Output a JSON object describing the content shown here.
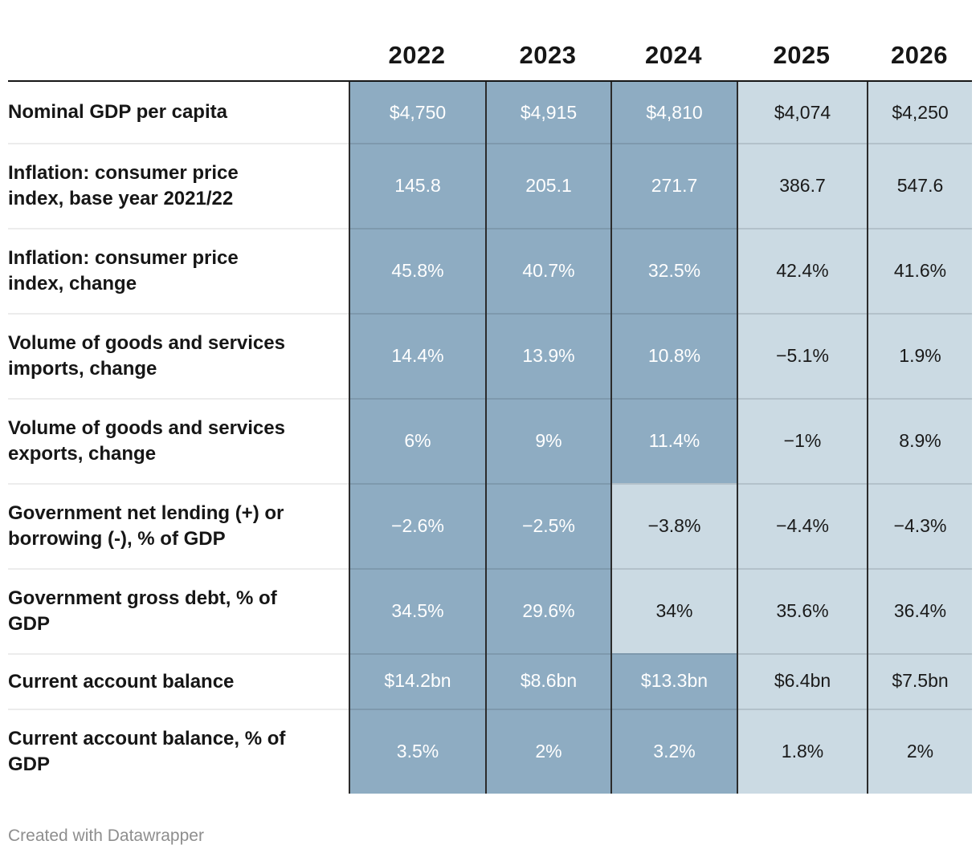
{
  "table": {
    "columns": [
      "2022",
      "2023",
      "2024",
      "2025",
      "2026"
    ],
    "rows": [
      {
        "label": "Nominal GDP per capita",
        "values": [
          "$4,750",
          "$4,915",
          "$4,810",
          "$4,074",
          "$4,250"
        ],
        "tones": [
          "dark",
          "dark",
          "dark",
          "light",
          "light"
        ]
      },
      {
        "label": "Inflation: consumer price\nindex, base year 2021/22",
        "values": [
          "145.8",
          "205.1",
          "271.7",
          "386.7",
          "547.6"
        ],
        "tones": [
          "dark",
          "dark",
          "dark",
          "light",
          "light"
        ]
      },
      {
        "label": "Inflation: consumer price\nindex, change",
        "values": [
          "45.8%",
          "40.7%",
          "32.5%",
          "42.4%",
          "41.6%"
        ],
        "tones": [
          "dark",
          "dark",
          "dark",
          "light",
          "light"
        ]
      },
      {
        "label": "Volume of goods and services\nimports, change",
        "values": [
          "14.4%",
          "13.9%",
          "10.8%",
          "−5.1%",
          "1.9%"
        ],
        "tones": [
          "dark",
          "dark",
          "dark",
          "light",
          "light"
        ]
      },
      {
        "label": "Volume of goods and services\nexports, change",
        "values": [
          "6%",
          "9%",
          "11.4%",
          "−1%",
          "8.9%"
        ],
        "tones": [
          "dark",
          "dark",
          "dark",
          "light",
          "light"
        ]
      },
      {
        "label": "Government net lending (+) or\nborrowing (-), % of GDP",
        "values": [
          "−2.6%",
          "−2.5%",
          "−3.8%",
          "−4.4%",
          "−4.3%"
        ],
        "tones": [
          "dark",
          "dark",
          "light",
          "light",
          "light"
        ]
      },
      {
        "label": "Government gross debt, % of\nGDP",
        "values": [
          "34.5%",
          "29.6%",
          "34%",
          "35.6%",
          "36.4%"
        ],
        "tones": [
          "dark",
          "dark",
          "light",
          "light",
          "light"
        ]
      },
      {
        "label": "Current account balance",
        "values": [
          "$14.2bn",
          "$8.6bn",
          "$13.3bn",
          "$6.4bn",
          "$7.5bn"
        ],
        "tones": [
          "dark",
          "dark",
          "dark",
          "light",
          "light"
        ]
      },
      {
        "label": "Current account balance, % of\nGDP",
        "values": [
          "3.5%",
          "2%",
          "3.2%",
          "1.8%",
          "2%"
        ],
        "tones": [
          "dark",
          "dark",
          "dark",
          "light",
          "light"
        ]
      }
    ]
  },
  "chart_data": {
    "type": "table",
    "columns": [
      "2022",
      "2023",
      "2024",
      "2025",
      "2026"
    ],
    "rows": [
      {
        "label": "Nominal GDP per capita",
        "unit": "$",
        "values": [
          4750,
          4915,
          4810,
          4074,
          4250
        ]
      },
      {
        "label": "Inflation: consumer price index, base year 2021/22",
        "unit": "index",
        "values": [
          145.8,
          205.1,
          271.7,
          386.7,
          547.6
        ]
      },
      {
        "label": "Inflation: consumer price index, change",
        "unit": "%",
        "values": [
          45.8,
          40.7,
          32.5,
          42.4,
          41.6
        ]
      },
      {
        "label": "Volume of goods and services imports, change",
        "unit": "%",
        "values": [
          14.4,
          13.9,
          10.8,
          -5.1,
          1.9
        ]
      },
      {
        "label": "Volume of goods and services exports, change",
        "unit": "%",
        "values": [
          6,
          9,
          11.4,
          -1,
          8.9
        ]
      },
      {
        "label": "Government net lending (+) or borrowing (-), % of GDP",
        "unit": "%",
        "values": [
          -2.6,
          -2.5,
          -3.8,
          -4.4,
          -4.3
        ]
      },
      {
        "label": "Government gross debt, % of GDP",
        "unit": "%",
        "values": [
          34.5,
          29.6,
          34,
          35.6,
          36.4
        ]
      },
      {
        "label": "Current account balance",
        "unit": "$bn",
        "values": [
          14.2,
          8.6,
          13.3,
          6.4,
          7.5
        ]
      },
      {
        "label": "Current account balance, % of GDP",
        "unit": "%",
        "values": [
          3.5,
          2,
          3.2,
          1.8,
          2
        ]
      }
    ],
    "cell_shading_note": "dark cells = heatmap tone #8eacc2 with white text; light cells = #cbdae3 with dark text"
  },
  "colors": {
    "dark_cell": "#8eacc2",
    "light_cell": "#cbdae3",
    "header_text": "#161616",
    "column_border": "#2b2b2b",
    "footer_text": "#8e8e8e"
  },
  "footer": {
    "credit": "Created with Datawrapper"
  }
}
